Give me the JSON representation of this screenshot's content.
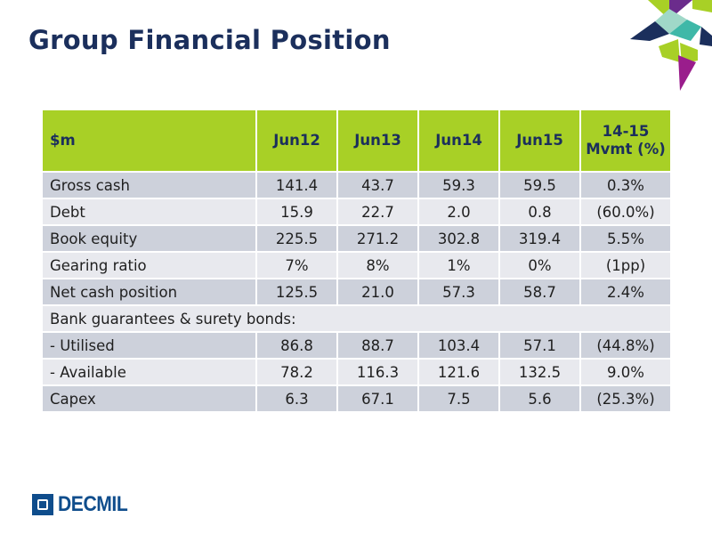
{
  "slide": {
    "title": "Group Financial Position"
  },
  "brand": {
    "name": "DECMIL"
  },
  "colors": {
    "title": "#1b2f5c",
    "header_bg": "#a8d026",
    "row_dark": "#cdd1db",
    "row_light": "#e8e9ee",
    "brand": "#0f4d8c"
  },
  "table": {
    "headers": [
      "$m",
      "Jun12",
      "Jun13",
      "Jun14",
      "Jun15",
      "14-15 Mvmt (%)"
    ],
    "rows": [
      [
        "Gross cash",
        "141.4",
        "43.7",
        "59.3",
        "59.5",
        "0.3%"
      ],
      [
        "Debt",
        "15.9",
        "22.7",
        "2.0",
        "0.8",
        "(60.0%)"
      ],
      [
        "Book equity",
        "225.5",
        "271.2",
        "302.8",
        "319.4",
        "5.5%"
      ],
      [
        "Gearing ratio",
        "7%",
        "8%",
        "1%",
        "0%",
        "(1pp)"
      ],
      [
        "Net cash position",
        "125.5",
        "21.0",
        "57.3",
        "58.7",
        "2.4%"
      ],
      [
        "Bank guarantees & surety bonds:"
      ],
      [
        "- Utilised",
        "86.8",
        "88.7",
        "103.4",
        "57.1",
        "(44.8%)"
      ],
      [
        "- Available",
        "78.2",
        "116.3",
        "121.6",
        "132.5",
        "9.0%"
      ],
      [
        "Capex",
        "6.3",
        "67.1",
        "7.5",
        "5.6",
        "(25.3%)"
      ]
    ]
  }
}
